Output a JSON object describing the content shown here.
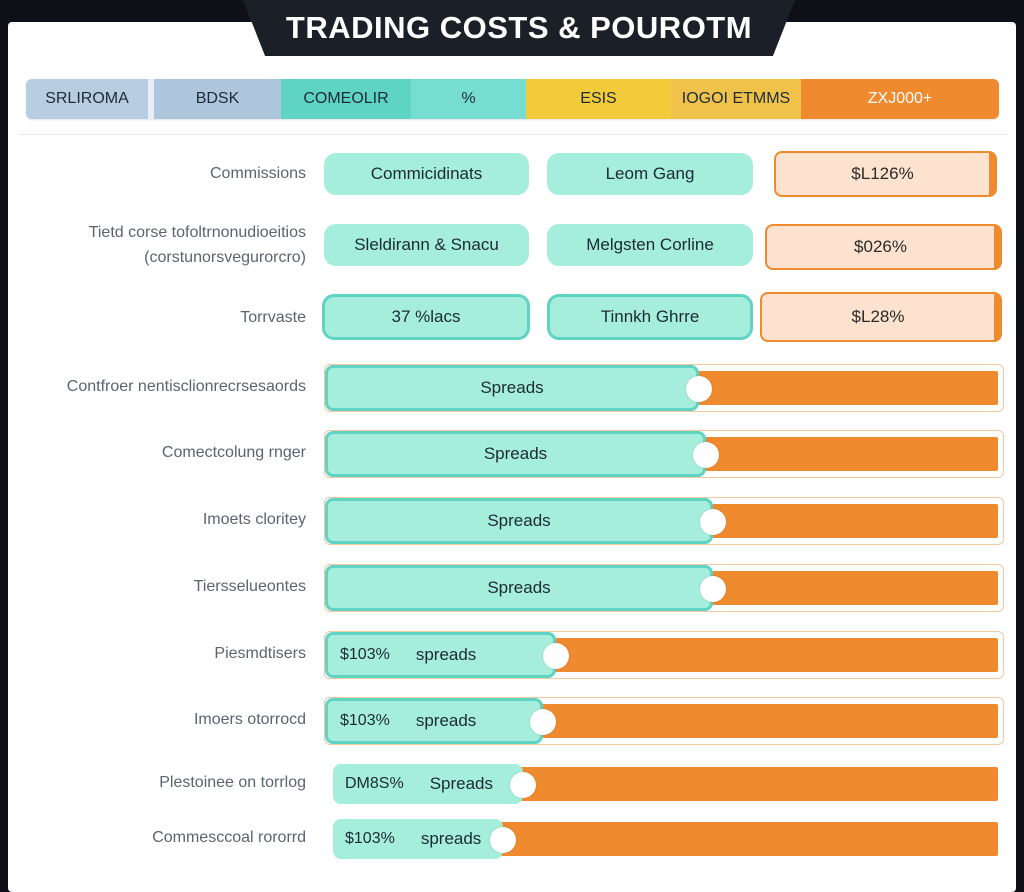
{
  "title": "TRADING COSTS & POUROTM",
  "legend": [
    "SRLIROMA",
    "BDSK",
    "COMEOLIR",
    "%",
    "ESIS",
    "IOGOI ETMMS",
    "ZXJ000+"
  ],
  "rows": [
    {
      "label": "Commissions",
      "pill1": "Commicidinats",
      "pill2": "Leom Gang",
      "cost": "$L126%"
    },
    {
      "label": "Tietd corse tofoltrnonudioeitios",
      "label2": "(corstunorsvegurorcro)",
      "pill1": "Sleldirann & Snacu",
      "pill2": "Melgsten Corline",
      "cost": "$026%"
    },
    {
      "label": "Torrvaste",
      "pill1": "37 %lacs",
      "pill2": "Tinnkh Ghrre",
      "cost": "$L28%"
    }
  ],
  "bars": [
    {
      "label": "Contfroer nentisclionrecrsesaords",
      "text": "Spreads",
      "pct": "",
      "fill": 0.55
    },
    {
      "label": "Comectcolung rnger",
      "text": "Spreads",
      "pct": "",
      "fill": 0.56
    },
    {
      "label": "Imoets cloritey",
      "text": "Spreads",
      "pct": "",
      "fill": 0.57
    },
    {
      "label": "Tiersselueontes",
      "text": "Spreads",
      "pct": "",
      "fill": 0.57
    },
    {
      "label": "Piesmdtisers",
      "text": "spreads",
      "pct": "$103%",
      "fill": 0.34
    },
    {
      "label": "Imoers otorrocd",
      "text": "spreads",
      "pct": "$103%",
      "fill": 0.32
    },
    {
      "label": "Plestoinee on torrlog",
      "text": "Spreads",
      "pct": "DM8S%",
      "fill": 0.28
    },
    {
      "label": "Commesccoal rororrd",
      "text": "spreads",
      "pct": "$103%",
      "fill": 0.25
    }
  ]
}
